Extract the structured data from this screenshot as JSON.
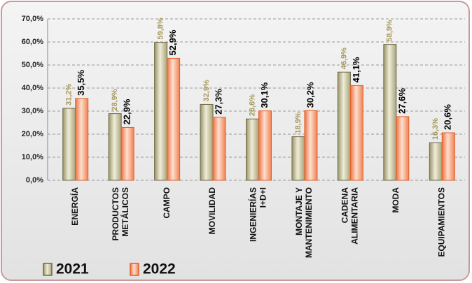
{
  "chart_data": {
    "type": "bar",
    "categories": [
      "ENERGÍA",
      "PRODUCTOS\nMETÁLICOS",
      "CAMPO",
      "MOVILIDAD",
      "INGENIERÍAS\nI+D+I",
      "MONTAJE Y\nMANTENIMIENTO",
      "CADENA\nALIMENTARIA",
      "MODA",
      "EQUIPAMIENTOS"
    ],
    "series": [
      {
        "name": "2021",
        "color": "#c9c49c",
        "values": [
          31.2,
          28.9,
          59.8,
          32.9,
          26.6,
          18.9,
          46.9,
          58.9,
          16.3
        ],
        "value_labels": [
          "31,2%",
          "28,9%",
          "59,8%",
          "32,9%",
          "26,6%",
          "18,9%",
          "46,9%",
          "58,9%",
          "16,3%"
        ]
      },
      {
        "name": "2022",
        "color": "#f7a47a",
        "values": [
          35.5,
          22.9,
          52.9,
          27.3,
          30.1,
          30.2,
          41.1,
          27.6,
          20.6
        ],
        "value_labels": [
          "35,5%",
          "22,9%",
          "52,9%",
          "27,3%",
          "30,1%",
          "30,2%",
          "41,1%",
          "27,6%",
          "20,6%"
        ]
      }
    ],
    "ylim": [
      0,
      70
    ],
    "yticks": [
      {
        "value": 0,
        "label": "0,0%"
      },
      {
        "value": 10,
        "label": "10,0%"
      },
      {
        "value": 20,
        "label": "20,0%"
      },
      {
        "value": 30,
        "label": "30,0%"
      },
      {
        "value": 40,
        "label": "40,0%"
      },
      {
        "value": 50,
        "label": "50,0%"
      },
      {
        "value": 60,
        "label": "60,0%"
      },
      {
        "value": 70,
        "label": "70,0%"
      }
    ],
    "grid": true,
    "legend": "bottom-left"
  }
}
